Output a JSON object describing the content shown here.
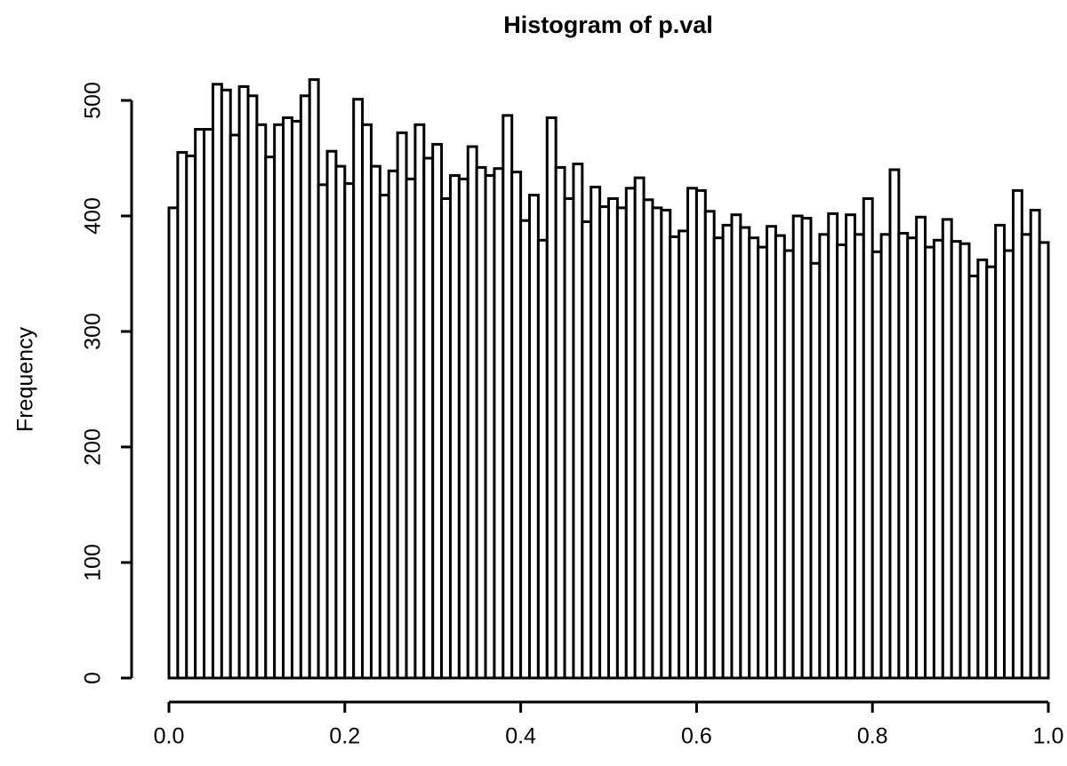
{
  "chart_data": {
    "type": "histogram",
    "title": "Histogram of p.val",
    "ylabel": "Frequency",
    "bins": [
      0,
      0.01,
      0.02,
      0.03,
      0.04,
      0.05,
      0.06,
      0.07,
      0.08,
      0.09,
      0.1,
      0.11,
      0.12,
      0.13,
      0.14,
      0.15,
      0.16,
      0.17,
      0.18,
      0.19,
      0.2,
      0.21,
      0.22,
      0.23,
      0.24,
      0.25,
      0.26,
      0.27,
      0.28,
      0.29,
      0.3,
      0.31,
      0.32,
      0.33,
      0.34,
      0.35,
      0.36,
      0.37,
      0.38,
      0.39,
      0.4,
      0.41,
      0.42,
      0.43,
      0.44,
      0.45,
      0.46,
      0.47,
      0.48,
      0.49,
      0.5,
      0.51,
      0.52,
      0.53,
      0.54,
      0.55,
      0.56,
      0.57,
      0.58,
      0.59,
      0.6,
      0.61,
      0.62,
      0.63,
      0.64,
      0.65,
      0.66,
      0.67,
      0.68,
      0.69,
      0.7,
      0.71,
      0.72,
      0.73,
      0.74,
      0.75,
      0.76,
      0.77,
      0.78,
      0.79,
      0.8,
      0.81,
      0.82,
      0.83,
      0.84,
      0.85,
      0.86,
      0.87,
      0.88,
      0.89,
      0.9,
      0.91,
      0.92,
      0.93,
      0.94,
      0.95,
      0.96,
      0.97,
      0.98,
      0.99,
      1
    ],
    "counts": [
      407,
      455,
      452,
      475,
      475,
      514,
      509,
      470,
      512,
      504,
      479,
      451,
      479,
      485,
      482,
      504,
      518,
      427,
      456,
      443,
      428,
      501,
      479,
      443,
      418,
      439,
      472,
      432,
      479,
      450,
      462,
      415,
      435,
      432,
      460,
      442,
      435,
      441,
      487,
      438,
      396,
      418,
      379,
      485,
      442,
      415,
      445,
      395,
      425,
      408,
      415,
      407,
      424,
      433,
      414,
      407,
      405,
      382,
      387,
      424,
      422,
      404,
      381,
      392,
      401,
      390,
      381,
      373,
      391,
      383,
      370,
      400,
      398,
      359,
      384,
      402,
      375,
      401,
      384,
      415,
      369,
      384,
      440,
      385,
      381,
      399,
      373,
      379,
      397,
      378,
      376,
      348,
      362,
      356,
      392,
      370,
      422,
      384,
      405,
      377
    ],
    "color": "#ffffff",
    "xlim": [
      0,
      1
    ],
    "xticks": [
      {
        "value": 0,
        "label": "0.0"
      },
      {
        "value": 0.2,
        "label": "0.2"
      },
      {
        "value": 0.4,
        "label": "0.4"
      },
      {
        "value": 0.6,
        "label": "0.6"
      },
      {
        "value": 0.8,
        "label": "0.8"
      },
      {
        "value": 1,
        "label": "1.0"
      }
    ],
    "ylim": [
      0,
      518
    ],
    "yticks": [
      0,
      100,
      200,
      300,
      400,
      500
    ]
  }
}
